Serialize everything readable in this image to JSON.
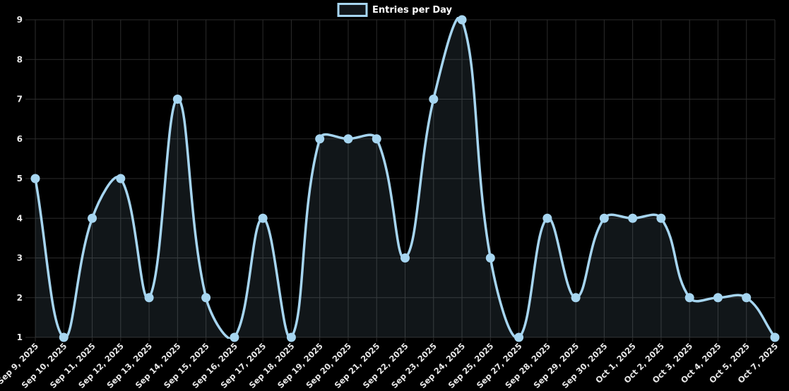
{
  "legend": {
    "items": [
      {
        "label": "Entries per Day"
      }
    ]
  },
  "colors": {
    "background": "#000000",
    "line": "#A6D5F0",
    "point": "#A6D5F0",
    "area_fill": "rgba(166,213,242,0.10)",
    "grid": "#2b2b2b",
    "tick_text": "#e8e8e8",
    "legend_text": "#ffffff"
  },
  "chart_data": {
    "type": "line",
    "title": "",
    "xlabel": "",
    "ylabel": "",
    "x": [
      "Sep 9, 2025",
      "Sep 10, 2025",
      "Sep 11, 2025",
      "Sep 12, 2025",
      "Sep 13, 2025",
      "Sep 14, 2025",
      "Sep 15, 2025",
      "Sep 16, 2025",
      "Sep 17, 2025",
      "Sep 18, 2025",
      "Sep 19, 2025",
      "Sep 20, 2025",
      "Sep 21, 2025",
      "Sep 22, 2025",
      "Sep 23, 2025",
      "Sep 24, 2025",
      "Sep 25, 2025",
      "Sep 27, 2025",
      "Sep 28, 2025",
      "Sep 29, 2025",
      "Sep 30, 2025",
      "Oct 1, 2025",
      "Oct 2, 2025",
      "Oct 3, 2025",
      "Oct 4, 2025",
      "Oct 5, 2025",
      "Oct 7, 2025"
    ],
    "series": [
      {
        "name": "Entries per Day",
        "values": [
          5,
          1,
          4,
          5,
          2,
          7,
          2,
          1,
          4,
          1,
          6,
          6,
          6,
          3,
          7,
          9,
          3,
          1,
          4,
          2,
          4,
          4,
          4,
          2,
          2,
          2,
          1
        ]
      }
    ],
    "ylim": [
      1,
      9
    ],
    "yticks": [
      1,
      2,
      3,
      4,
      5,
      6,
      7,
      8,
      9
    ],
    "grid": true,
    "area_fill": true,
    "line_tension": 0.4,
    "legend_position": "top"
  }
}
